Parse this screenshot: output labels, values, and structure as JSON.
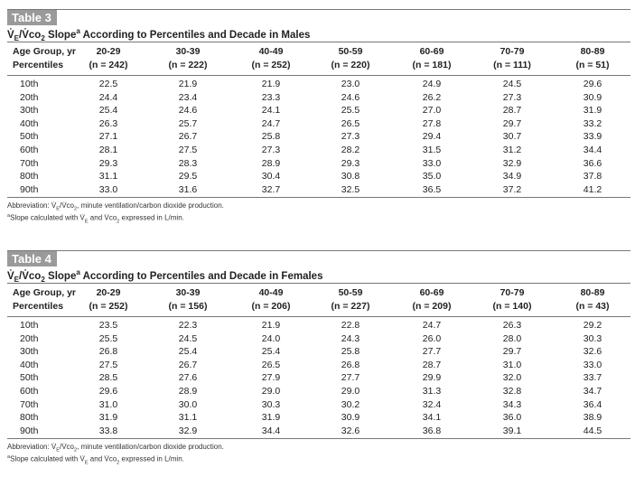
{
  "tables": [
    {
      "label": "Table 3",
      "title": [
        "V̇",
        "E",
        "/V̇co",
        "2",
        " Slope",
        "a",
        " According to Percentiles and Decade in Males"
      ],
      "row_header": [
        "Age Group, yr",
        "Percentiles"
      ],
      "columns": [
        [
          "20-29",
          "(n = 242)"
        ],
        [
          "30-39",
          "(n = 222)"
        ],
        [
          "40-49",
          "(n = 252)"
        ],
        [
          "50-59",
          "(n = 220)"
        ],
        [
          "60-69",
          "(n = 181)"
        ],
        [
          "70-79",
          "(n = 111)"
        ],
        [
          "80-89",
          "(n = 51)"
        ]
      ],
      "rows": [
        [
          "10th",
          "22.5",
          "21.9",
          "21.9",
          "23.0",
          "24.9",
          "24.5",
          "29.6"
        ],
        [
          "20th",
          "24.4",
          "23.4",
          "23.3",
          "24.6",
          "26.2",
          "27.3",
          "30.9"
        ],
        [
          "30th",
          "25.4",
          "24.6",
          "24.1",
          "25.5",
          "27.0",
          "28.7",
          "31.9"
        ],
        [
          "40th",
          "26.3",
          "25.7",
          "24.7",
          "26.5",
          "27.8",
          "29.7",
          "33.2"
        ],
        [
          "50th",
          "27.1",
          "26.7",
          "25.8",
          "27.3",
          "29.4",
          "30.7",
          "33.9"
        ],
        [
          "60th",
          "28.1",
          "27.5",
          "27.3",
          "28.2",
          "31.5",
          "31.2",
          "34.4"
        ],
        [
          "70th",
          "29.3",
          "28.3",
          "28.9",
          "29.3",
          "33.0",
          "32.9",
          "36.6"
        ],
        [
          "80th",
          "31.1",
          "29.5",
          "30.4",
          "30.8",
          "35.0",
          "34.9",
          "37.8"
        ],
        [
          "90th",
          "33.0",
          "31.6",
          "32.7",
          "32.5",
          "36.5",
          "37.2",
          "41.2"
        ]
      ],
      "footnotes": [
        [
          "Abbreviation: V̇",
          "E",
          "/V̇co",
          "2",
          ", minute ventilation/carbon dioxide production."
        ],
        [
          "a",
          "Slope calculated with V̇",
          "E",
          " and V̇co",
          "2",
          " expressed in L/min."
        ]
      ]
    },
    {
      "label": "Table 4",
      "title": [
        "V̇",
        "E",
        "/V̇co",
        "2",
        " Slope",
        "a",
        " According to Percentiles and Decade in Females"
      ],
      "row_header": [
        "Age Group, yr",
        "Percentiles"
      ],
      "columns": [
        [
          "20-29",
          "(n = 252)"
        ],
        [
          "30-39",
          "(n = 156)"
        ],
        [
          "40-49",
          "(n = 206)"
        ],
        [
          "50-59",
          "(n = 227)"
        ],
        [
          "60-69",
          "(n = 209)"
        ],
        [
          "70-79",
          "(n = 140)"
        ],
        [
          "80-89",
          "(n = 43)"
        ]
      ],
      "rows": [
        [
          "10th",
          "23.5",
          "22.3",
          "21.9",
          "22.8",
          "24.7",
          "26.3",
          "29.2"
        ],
        [
          "20th",
          "25.5",
          "24.5",
          "24.0",
          "24.3",
          "26.0",
          "28.0",
          "30.3"
        ],
        [
          "30th",
          "26.8",
          "25.4",
          "25.4",
          "25.8",
          "27.7",
          "29.7",
          "32.6"
        ],
        [
          "40th",
          "27.5",
          "26.7",
          "26.5",
          "26.8",
          "28.7",
          "31.0",
          "33.0"
        ],
        [
          "50th",
          "28.5",
          "27.6",
          "27.9",
          "27.7",
          "29.9",
          "32.0",
          "33.7"
        ],
        [
          "60th",
          "29.6",
          "28.9",
          "29.0",
          "29.0",
          "31.3",
          "32.8",
          "34.7"
        ],
        [
          "70th",
          "31.0",
          "30.0",
          "30.3",
          "30.2",
          "32.4",
          "34.3",
          "36.4"
        ],
        [
          "80th",
          "31.9",
          "31.1",
          "31.9",
          "30.9",
          "34.1",
          "36.0",
          "38.9"
        ],
        [
          "90th",
          "33.8",
          "32.9",
          "34.4",
          "32.6",
          "36.8",
          "39.1",
          "44.5"
        ]
      ],
      "footnotes": [
        [
          "Abbreviation: V̇",
          "E",
          "/V̇co",
          "2",
          ", minute ventilation/carbon dioxide production."
        ],
        [
          "a",
          "Slope calculated with V̇",
          "E",
          " and V̇co",
          "2",
          " expressed in L/min."
        ]
      ]
    }
  ]
}
